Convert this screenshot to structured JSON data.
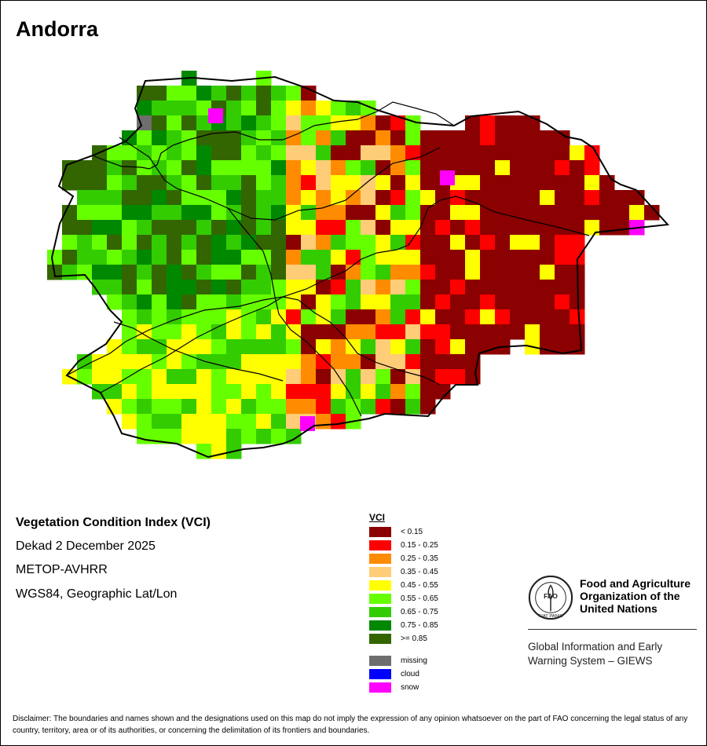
{
  "title": "Andorra",
  "info": {
    "index_name": "Vegetation Condition Index (VCI)",
    "period": "Dekad 2 December 2025",
    "sensor": "METOP-AVHRR",
    "projection": "WGS84, Geographic Lat/Lon"
  },
  "legend": {
    "title": "VCI",
    "classes": [
      {
        "label": "< 0.15",
        "color": "#8b0000"
      },
      {
        "label": "0.15 - 0.25",
        "color": "#ff0000"
      },
      {
        "label": "0.25 - 0.35",
        "color": "#ff8c00"
      },
      {
        "label": "0.35 - 0.45",
        "color": "#ffcc77"
      },
      {
        "label": "0.45 - 0.55",
        "color": "#ffff00"
      },
      {
        "label": "0.55 - 0.65",
        "color": "#66ff00"
      },
      {
        "label": "0.65 - 0.75",
        "color": "#33cc00"
      },
      {
        "label": "0.75 - 0.85",
        "color": "#008800"
      },
      {
        "label": ">= 0.85",
        "color": "#336600"
      }
    ],
    "special": [
      {
        "label": "missing",
        "color": "#6e6e6e"
      },
      {
        "label": "cloud",
        "color": "#0000ff"
      },
      {
        "label": "snow",
        "color": "#ff00ff"
      }
    ]
  },
  "organization": {
    "name_line1": "Food and Agriculture",
    "name_line2": "Organization of the",
    "name_line3": "United Nations",
    "logo_text": "FAO",
    "logo_motto": "FIAT PANIS",
    "system_line1": "Global Information and Early",
    "system_line2": "Warning System – GIEWS"
  },
  "disclaimer": "Disclaimer: The boundaries and names shown and the designations used on this map do not imply the expression of any opinion whatsoever on the part of FAO concerning the legal status of any country, territory, area or of its authorities, or concerning the delimitation of its frontiers and boundaries."
}
